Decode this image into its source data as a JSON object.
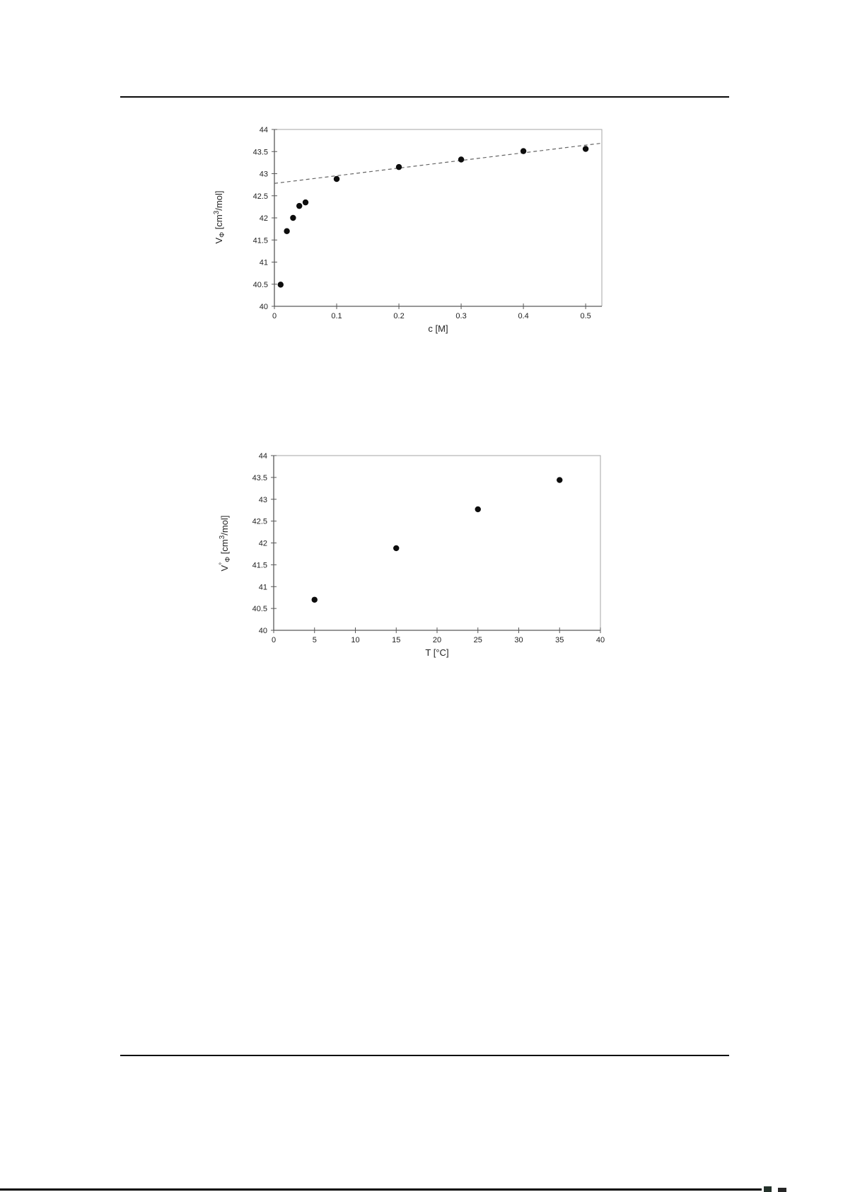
{
  "page": {
    "type": "document-page-with-figures",
    "background_color": "#ffffff",
    "rule_color": "#0a0a0a"
  },
  "colors": {
    "marker": "#0d0d0d",
    "axis": "#595959",
    "plot_border": "#a6a6a6",
    "trendline": "#666666",
    "text": "#1f1f1f"
  },
  "chart_data": [
    {
      "type": "scatter",
      "title": "",
      "xlabel": "c [M]",
      "ylabel": "VΦ [cm³/mol]",
      "ylabel_parts": [
        {
          "t": "V",
          "pos": "normal"
        },
        {
          "t": "Φ",
          "pos": "sub"
        },
        {
          "t": " [cm",
          "pos": "normal"
        },
        {
          "t": "3",
          "pos": "sup"
        },
        {
          "t": "/mol]",
          "pos": "normal"
        }
      ],
      "xlim": [
        0,
        0.526
      ],
      "ylim": [
        40,
        44
      ],
      "grid": false,
      "legend": null,
      "x_ticks": [
        {
          "v": 0,
          "label": "0"
        },
        {
          "v": 0.1,
          "label": "0.1"
        },
        {
          "v": 0.2,
          "label": "0.2"
        },
        {
          "v": 0.3,
          "label": "0.3"
        },
        {
          "v": 0.4,
          "label": "0.4"
        },
        {
          "v": 0.5,
          "label": "0.5"
        }
      ],
      "y_ticks": [
        {
          "v": 40,
          "label": "40"
        },
        {
          "v": 40.5,
          "label": "40.5"
        },
        {
          "v": 41,
          "label": "41"
        },
        {
          "v": 41.5,
          "label": "41.5"
        },
        {
          "v": 42,
          "label": "42"
        },
        {
          "v": 42.5,
          "label": "42.5"
        },
        {
          "v": 43,
          "label": "43"
        },
        {
          "v": 43.5,
          "label": "43.5"
        },
        {
          "v": 44,
          "label": "44"
        }
      ],
      "points": [
        [
          0.01,
          40.49
        ],
        [
          0.02,
          41.7
        ],
        [
          0.03,
          42.0
        ],
        [
          0.04,
          42.27
        ],
        [
          0.05,
          42.35
        ],
        [
          0.1,
          42.88
        ],
        [
          0.2,
          43.15
        ],
        [
          0.3,
          43.32
        ],
        [
          0.4,
          43.51
        ],
        [
          0.5,
          43.56
        ]
      ],
      "trendline": {
        "style": "dashed",
        "x1": 0,
        "y1": 42.78,
        "x2": 0.526,
        "y2": 43.69
      }
    },
    {
      "type": "scatter",
      "title": "",
      "xlabel": "T [°C]",
      "ylabel": "V°Φ [cm³/mol]",
      "ylabel_parts": [
        {
          "t": "V",
          "pos": "normal"
        },
        {
          "t": "°",
          "pos": "sup"
        },
        {
          "t": "Φ",
          "pos": "sub"
        },
        {
          "t": " [cm",
          "pos": "normal"
        },
        {
          "t": "3",
          "pos": "sup"
        },
        {
          "t": "/mol]",
          "pos": "normal"
        }
      ],
      "xlim": [
        0,
        40
      ],
      "ylim": [
        40,
        44
      ],
      "grid": false,
      "legend": null,
      "x_ticks": [
        {
          "v": 0,
          "label": "0"
        },
        {
          "v": 5,
          "label": "5"
        },
        {
          "v": 10,
          "label": "10"
        },
        {
          "v": 15,
          "label": "15"
        },
        {
          "v": 20,
          "label": "20"
        },
        {
          "v": 25,
          "label": "25"
        },
        {
          "v": 30,
          "label": "30"
        },
        {
          "v": 35,
          "label": "35"
        },
        {
          "v": 40,
          "label": "40"
        }
      ],
      "y_ticks": [
        {
          "v": 40,
          "label": "40"
        },
        {
          "v": 40.5,
          "label": "40.5"
        },
        {
          "v": 41,
          "label": "41"
        },
        {
          "v": 41.5,
          "label": "41.5"
        },
        {
          "v": 42,
          "label": "42"
        },
        {
          "v": 42.5,
          "label": "42.5"
        },
        {
          "v": 43,
          "label": "43"
        },
        {
          "v": 43.5,
          "label": "43.5"
        },
        {
          "v": 44,
          "label": "44"
        }
      ],
      "points": [
        [
          5,
          40.7
        ],
        [
          15,
          41.88
        ],
        [
          25,
          42.77
        ],
        [
          35,
          43.44
        ]
      ],
      "trendline": null
    }
  ]
}
